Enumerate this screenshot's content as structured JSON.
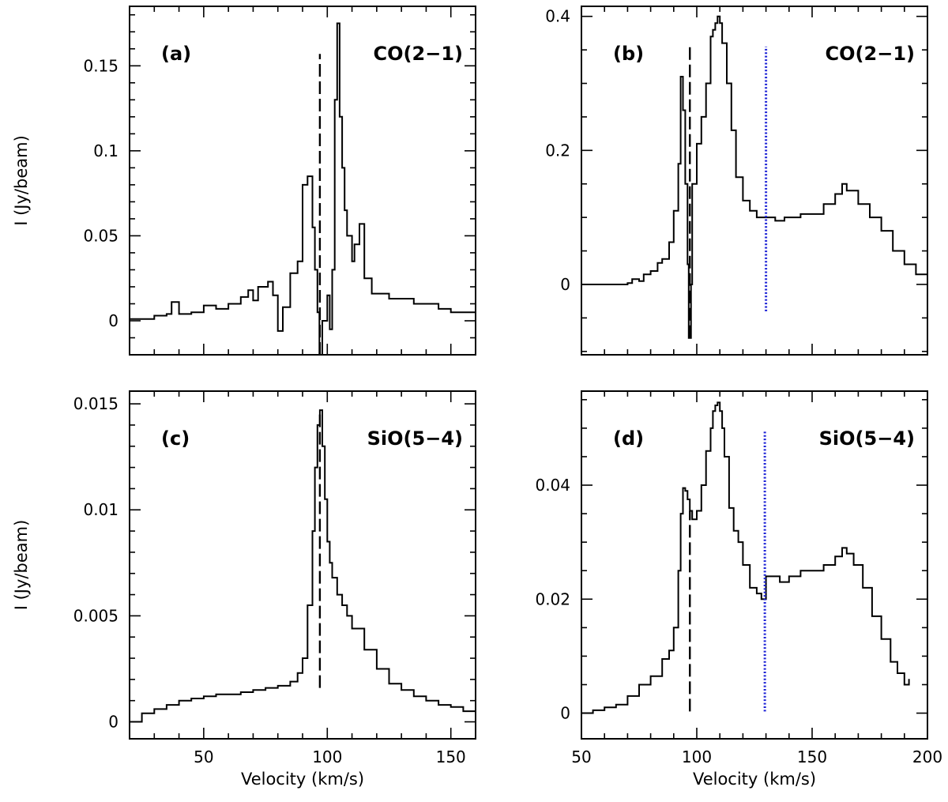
{
  "figure": {
    "ylabel": "I  (Jy/beam)",
    "xlabel": "Velocity  (km/s)"
  },
  "chart_data": [
    {
      "type": "line",
      "panel": "(a)",
      "line_label": "CO(2−1)",
      "xlim": [
        20,
        160
      ],
      "ylim": [
        -0.02,
        0.185
      ],
      "xticks_major": [
        50,
        100,
        150
      ],
      "xticks_minor_step": 10,
      "yticks": [
        0,
        0.05,
        0.1,
        0.15
      ],
      "ytick_labels": [
        "0",
        "0.05",
        "0.1",
        "0.15"
      ],
      "yticks_minor_step": 0.01,
      "show_xtick_labels": false,
      "show_ylabel": true,
      "show_xlabel": false,
      "dashed_line": {
        "x": 97,
        "y": [
          -0.02,
          0.157
        ]
      },
      "dotted_line": null,
      "x": [
        20,
        30,
        35,
        37,
        40,
        45,
        50,
        55,
        60,
        65,
        68,
        70,
        72,
        76,
        78,
        80,
        82,
        85,
        88,
        90,
        92,
        94,
        95,
        96,
        96.8,
        97.2,
        98,
        100,
        101,
        102,
        103,
        104,
        105,
        106,
        107,
        108,
        110,
        111,
        113,
        115,
        118,
        125,
        135,
        145,
        150,
        160
      ],
      "y": [
        0.001,
        0.003,
        0.004,
        0.011,
        0.004,
        0.005,
        0.009,
        0.007,
        0.01,
        0.014,
        0.018,
        0.012,
        0.02,
        0.023,
        0.015,
        -0.006,
        0.008,
        0.028,
        0.035,
        0.08,
        0.085,
        0.055,
        0.03,
        0.005,
        -0.04,
        -0.04,
        0.0,
        0.015,
        -0.005,
        0.03,
        0.13,
        0.175,
        0.12,
        0.09,
        0.065,
        0.05,
        0.035,
        0.045,
        0.057,
        0.025,
        0.016,
        0.013,
        0.01,
        0.007,
        0.005,
        0.005
      ]
    },
    {
      "type": "line",
      "panel": "(b)",
      "line_label": "CO(2−1)",
      "xlim": [
        50,
        200
      ],
      "ylim": [
        -0.105,
        0.415
      ],
      "xticks_major": [
        50,
        100,
        150,
        200
      ],
      "xticks_minor_step": 10,
      "yticks": [
        0,
        0.2,
        0.4
      ],
      "ytick_labels": [
        "0",
        "0.2",
        "0.4"
      ],
      "yticks_minor_step": 0.05,
      "show_xtick_labels": false,
      "show_ylabel": false,
      "show_xlabel": false,
      "dashed_line": {
        "x": 97,
        "y": [
          -0.08,
          0.355
        ]
      },
      "dotted_line": {
        "x": 130,
        "y": [
          -0.04,
          0.355
        ]
      },
      "x": [
        50,
        60,
        65,
        70,
        72,
        75,
        77,
        80,
        83,
        85,
        88,
        90,
        92,
        93,
        94,
        95,
        96,
        96.5,
        97,
        97.5,
        98,
        100,
        102,
        104,
        106,
        107,
        108,
        109,
        110,
        111,
        113,
        115,
        117,
        120,
        123,
        126,
        130,
        134,
        138,
        145,
        155,
        160,
        163,
        165,
        170,
        175,
        180,
        185,
        190,
        195,
        200
      ],
      "y": [
        0.0,
        0.0,
        0.0,
        0.002,
        0.008,
        0.005,
        0.015,
        0.02,
        0.032,
        0.038,
        0.063,
        0.11,
        0.18,
        0.31,
        0.26,
        0.15,
        0.03,
        -0.08,
        -0.08,
        0.0,
        0.15,
        0.21,
        0.25,
        0.3,
        0.37,
        0.38,
        0.39,
        0.4,
        0.39,
        0.36,
        0.3,
        0.23,
        0.16,
        0.125,
        0.11,
        0.1,
        0.1,
        0.095,
        0.1,
        0.105,
        0.12,
        0.135,
        0.15,
        0.14,
        0.12,
        0.1,
        0.08,
        0.05,
        0.03,
        0.015,
        0.005
      ]
    },
    {
      "type": "line",
      "panel": "(c)",
      "line_label": "SiO(5−4)",
      "xlim": [
        20,
        160
      ],
      "ylim": [
        -0.0008,
        0.0156
      ],
      "xticks_major": [
        50,
        100,
        150
      ],
      "xticks_minor_step": 10,
      "yticks": [
        0,
        0.005,
        0.01,
        0.015
      ],
      "ytick_labels": [
        "0",
        "0.005",
        "0.01",
        "0.015"
      ],
      "yticks_minor_step": 0.001,
      "show_xtick_labels": true,
      "show_ylabel": true,
      "show_xlabel": true,
      "dashed_line": {
        "x": 97,
        "y": [
          0.0016,
          0.0146
        ]
      },
      "dotted_line": null,
      "x": [
        20,
        25,
        30,
        35,
        40,
        45,
        50,
        55,
        60,
        65,
        70,
        75,
        80,
        85,
        88,
        90,
        92,
        94,
        95,
        96,
        97,
        98,
        99,
        100,
        101,
        102,
        104,
        106,
        108,
        110,
        115,
        120,
        125,
        130,
        135,
        140,
        145,
        150,
        155,
        160
      ],
      "y": [
        0.0,
        0.0004,
        0.0006,
        0.0008,
        0.001,
        0.0011,
        0.0012,
        0.0013,
        0.0013,
        0.0014,
        0.0015,
        0.0016,
        0.0017,
        0.0019,
        0.0023,
        0.003,
        0.0055,
        0.009,
        0.012,
        0.014,
        0.0147,
        0.013,
        0.0105,
        0.0085,
        0.0075,
        0.0068,
        0.006,
        0.0055,
        0.005,
        0.0044,
        0.0034,
        0.0025,
        0.0018,
        0.0015,
        0.0012,
        0.001,
        0.0008,
        0.0007,
        0.0005,
        0.0004
      ]
    },
    {
      "type": "line",
      "panel": "(d)",
      "line_label": "SiO(5−4)",
      "xlim": [
        50,
        200
      ],
      "ylim": [
        -0.0045,
        0.0565
      ],
      "xticks_major": [
        50,
        100,
        150,
        200
      ],
      "xticks_minor_step": 10,
      "yticks": [
        0,
        0.02,
        0.04
      ],
      "ytick_labels": [
        "0",
        "0.02",
        "0.04"
      ],
      "yticks_minor_step": 0.005,
      "show_xtick_labels": true,
      "show_ylabel": false,
      "show_xlabel": true,
      "dashed_line": {
        "x": 97,
        "y": [
          0.0003,
          0.0355
        ]
      },
      "dotted_line": {
        "x": 129.5,
        "y": [
          0.0003,
          0.0495
        ]
      },
      "x": [
        50,
        55,
        60,
        65,
        70,
        75,
        80,
        85,
        88,
        90,
        92,
        93,
        94,
        95,
        96,
        97,
        98,
        100,
        102,
        104,
        106,
        107,
        108,
        109,
        110,
        111,
        112,
        114,
        116,
        118,
        120,
        123,
        126,
        128,
        130,
        133,
        136,
        140,
        145,
        150,
        155,
        160,
        163,
        165,
        168,
        172,
        176,
        180,
        184,
        187,
        190,
        192
      ],
      "y": [
        0.0,
        0.0005,
        0.001,
        0.0015,
        0.003,
        0.005,
        0.0065,
        0.0095,
        0.011,
        0.015,
        0.025,
        0.035,
        0.0395,
        0.039,
        0.0375,
        0.0355,
        0.034,
        0.0355,
        0.04,
        0.046,
        0.05,
        0.053,
        0.054,
        0.0545,
        0.053,
        0.05,
        0.045,
        0.036,
        0.032,
        0.03,
        0.026,
        0.022,
        0.021,
        0.02,
        0.024,
        0.024,
        0.023,
        0.024,
        0.025,
        0.025,
        0.026,
        0.0275,
        0.029,
        0.028,
        0.026,
        0.022,
        0.017,
        0.013,
        0.009,
        0.007,
        0.005,
        0.006
      ]
    }
  ]
}
